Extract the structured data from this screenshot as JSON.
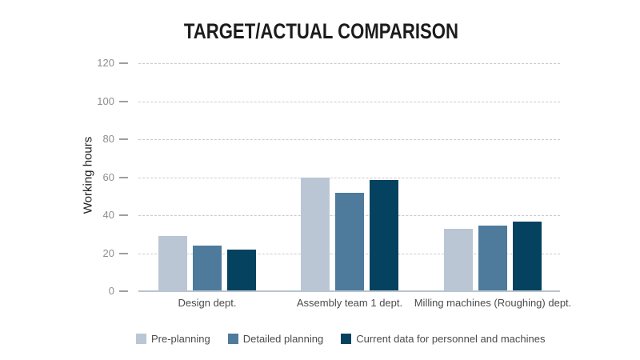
{
  "chart_data": {
    "type": "bar",
    "title": "TARGET/ACTUAL COMPARISON",
    "ylabel": "Working hours",
    "xlabel": "",
    "categories": [
      "Design dept.",
      "Assembly team 1 dept.",
      "Milling machines (Roughing) dept."
    ],
    "series": [
      {
        "name": "Pre-planning",
        "color": "#bac6d3",
        "values": [
          29,
          60,
          33
        ]
      },
      {
        "name": "Detailed planning",
        "color": "#4e7a9c",
        "values": [
          24,
          52,
          34.5
        ]
      },
      {
        "name": "Current data for personnel and machines",
        "color": "#05425f",
        "values": [
          22,
          58.5,
          36.5
        ]
      }
    ],
    "yticks": [
      0,
      20,
      40,
      60,
      80,
      100,
      120
    ],
    "ylim": [
      0,
      120
    ],
    "grid": "horizontal-dashed",
    "legend_position": "bottom-left",
    "colors": {
      "axis_line": "#b9c5d0",
      "gridline": "#cbcbcb",
      "tick_mark": "#9e9e9e",
      "tick_text": "#8e8e8e",
      "category_text": "#4b4b4b",
      "title_text": "#1c1c1c"
    }
  }
}
